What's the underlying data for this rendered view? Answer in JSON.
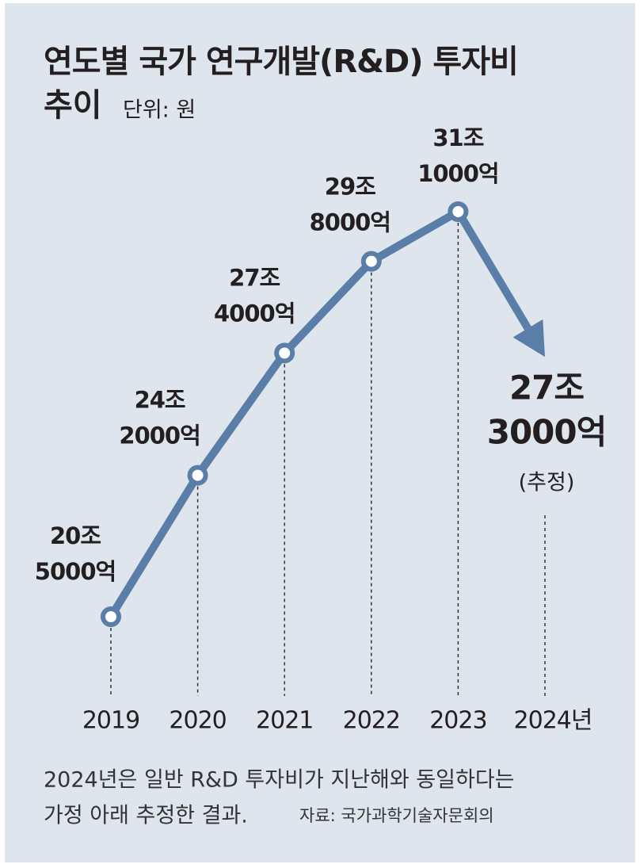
{
  "chart_data": {
    "type": "line",
    "title": [
      "연도별 국가 연구개발(R&D) 투자비",
      "추이"
    ],
    "unit": "단위: 원",
    "categories": [
      "2019",
      "2020",
      "2021",
      "2022",
      "2023",
      "2024년"
    ],
    "values": [
      205000,
      242000,
      274000,
      298000,
      311000,
      273000
    ],
    "value_labels": [
      [
        "20조",
        "5000억"
      ],
      [
        "24조",
        "2000억"
      ],
      [
        "27조",
        "4000억"
      ],
      [
        "29조",
        "8000억"
      ],
      [
        "31조",
        "1000억"
      ],
      [
        "27조",
        "3000억"
      ]
    ],
    "estimate_note": "(추정)",
    "color": "#5a7ea8",
    "footnote": [
      "2024년은 일반 R&D 투자비가 지난해와 동일하다는",
      "가정 아래 추정한 결과."
    ],
    "source": "자료: 국가과학기술자문회의"
  }
}
